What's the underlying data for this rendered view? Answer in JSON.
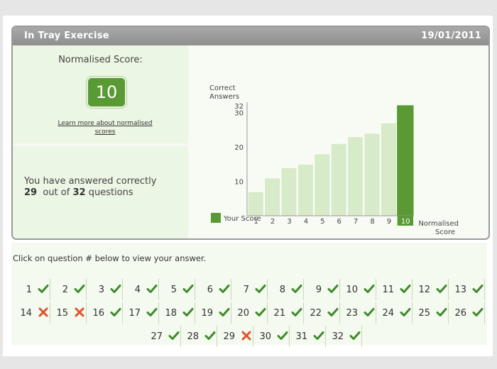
{
  "header": {
    "title": "In Tray Exercise",
    "date": "19/01/2011"
  },
  "score": {
    "label": "Normalised Score:",
    "value": "10",
    "learn_more": "Learn more about normalised scores"
  },
  "summary": {
    "line1": "You have answered correctly",
    "correct": "29",
    "middle": "out of",
    "total": "32",
    "end": "questions"
  },
  "chart_data": {
    "type": "bar",
    "ylabel": "Correct Answers",
    "xlabel": "Normalised Score",
    "categories": [
      "1",
      "2",
      "3",
      "4",
      "5",
      "6",
      "7",
      "8",
      "9",
      "10"
    ],
    "values": [
      7,
      11,
      14,
      15,
      18,
      21,
      23,
      24,
      27,
      32
    ],
    "highlight_index": 9,
    "ytick_values": [
      10,
      20,
      30,
      32
    ],
    "ylim": [
      0,
      33
    ],
    "legend": "Your Score",
    "colors": {
      "bar": "#d8ebc8",
      "highlight": "#5a9a35"
    }
  },
  "questions": {
    "instruction": "Click on question # below to view your answer.",
    "rows": [
      [
        {
          "n": "1",
          "ok": true
        },
        {
          "n": "2",
          "ok": true
        },
        {
          "n": "3",
          "ok": true
        },
        {
          "n": "4",
          "ok": true
        },
        {
          "n": "5",
          "ok": true
        },
        {
          "n": "6",
          "ok": true
        },
        {
          "n": "7",
          "ok": true
        },
        {
          "n": "8",
          "ok": true
        },
        {
          "n": "9",
          "ok": true
        },
        {
          "n": "10",
          "ok": true
        },
        {
          "n": "11",
          "ok": true
        },
        {
          "n": "12",
          "ok": true
        },
        {
          "n": "13",
          "ok": true
        }
      ],
      [
        {
          "n": "14",
          "ok": false
        },
        {
          "n": "15",
          "ok": false
        },
        {
          "n": "16",
          "ok": true
        },
        {
          "n": "17",
          "ok": true
        },
        {
          "n": "18",
          "ok": true
        },
        {
          "n": "19",
          "ok": true
        },
        {
          "n": "20",
          "ok": true
        },
        {
          "n": "21",
          "ok": true
        },
        {
          "n": "22",
          "ok": true
        },
        {
          "n": "23",
          "ok": true
        },
        {
          "n": "24",
          "ok": true
        },
        {
          "n": "25",
          "ok": true
        },
        {
          "n": "26",
          "ok": true
        }
      ],
      [
        {
          "n": "27",
          "ok": true
        },
        {
          "n": "28",
          "ok": true
        },
        {
          "n": "29",
          "ok": false
        },
        {
          "n": "30",
          "ok": true
        },
        {
          "n": "31",
          "ok": true
        },
        {
          "n": "32",
          "ok": true
        }
      ]
    ]
  }
}
